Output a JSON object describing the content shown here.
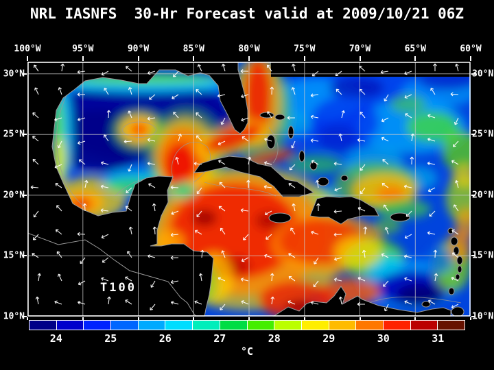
{
  "title": "NRL IASNFS  30-Hr Forecast valid at 2009/10/21 06Z",
  "map": {
    "field_label": "T100",
    "lon_labels": [
      "100°W",
      "95°W",
      "90°W",
      "85°W",
      "80°W",
      "75°W",
      "70°W",
      "65°W",
      "60°W"
    ],
    "lat_labels": [
      "30°N",
      "25°N",
      "20°N",
      "15°N",
      "10°N"
    ]
  },
  "colorbar": {
    "unit": "°C",
    "tick_labels": [
      "24",
      "25",
      "26",
      "27",
      "28",
      "29",
      "30",
      "31"
    ],
    "cell_colors": [
      "#000088",
      "#0000CC",
      "#0022FF",
      "#0066FF",
      "#00AAFF",
      "#00DDFF",
      "#00EEBB",
      "#00DD44",
      "#44EE00",
      "#BBFF00",
      "#FFEE00",
      "#FFBB00",
      "#FF7700",
      "#FF2200",
      "#BB0000",
      "#661100"
    ]
  },
  "colors": {
    "background": "#000000",
    "land": "#000000",
    "coastline": "#999999",
    "grid": "#CCCCCC",
    "frame": "#FFFFFF",
    "wind_vector": "#FFFFFF"
  },
  "chart_data": {
    "type": "heatmap",
    "title": "NRL IASNFS 30-Hr Forecast valid at 2009/10/21 06Z",
    "model": "NRL IASNFS",
    "forecast_hour": "30-Hr",
    "valid_time": "2009/10/21 06Z",
    "variable": "T100",
    "unit": "°C",
    "lon_ticks": [
      "100°W",
      "95°W",
      "90°W",
      "85°W",
      "80°W",
      "75°W",
      "70°W",
      "65°W",
      "60°W"
    ],
    "lat_ticks": [
      "30°N",
      "25°N",
      "20°N",
      "15°N",
      "10°N"
    ],
    "colorbar": {
      "min": 23.5,
      "max": 31.5,
      "ticks": [
        24,
        25,
        26,
        27,
        28,
        29,
        30,
        31
      ],
      "unit": "°C"
    },
    "overlays": [
      "white wind vector arrows on ~2 degree grid",
      "gray coastlines and isoline contours",
      "5-degree latitude/longitude graticule"
    ],
    "notable_features": [
      "Cold pool ~24-25°C fills the central Gulf of Mexico",
      "Warm ring eddy ~28-29°C near 90°W 26°N in the western Gulf",
      "Loop Current warm tongue ~29-30°C north of the Yucatan Channel",
      "Very warm 29-31°C water across the northwest Caribbean between Honduras, Cuba and Jamaica",
      "Warm Gulf Stream band east of Florida near 79-80°W",
      "Cool upwelling <25°C along the Venezuela coast near 64-66°W",
      "Mottled 26-28°C field across the open Atlantic north of the Greater Antilles",
      "Warm 28-29°C patch in the Bay of Campeche near 95°W 19°N"
    ]
  }
}
